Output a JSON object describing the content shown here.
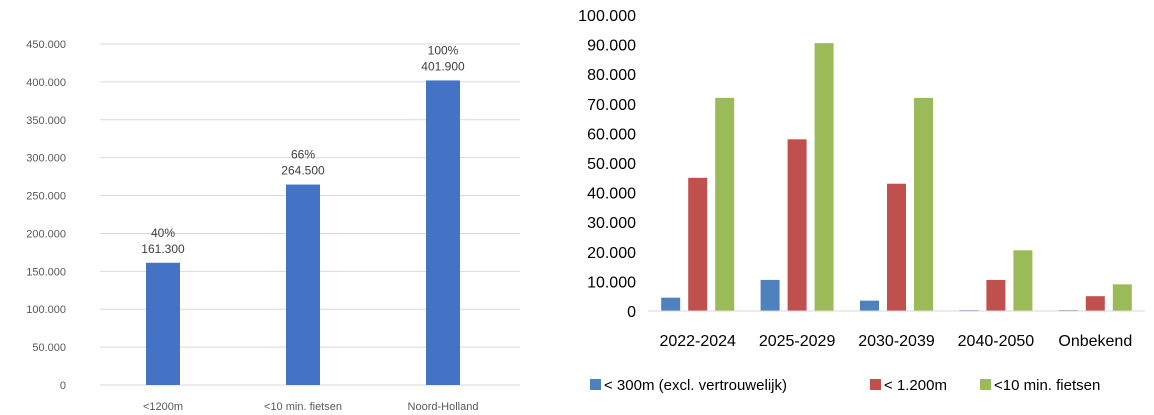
{
  "chart_data": [
    {
      "type": "bar",
      "categories": [
        "<1200m",
        "<10 min. fietsen",
        "Noord-Holland"
      ],
      "values": [
        161300,
        264500,
        401900
      ],
      "data_labels": [
        {
          "pct": "40%",
          "value": "161.300"
        },
        {
          "pct": "66%",
          "value": "264.500"
        },
        {
          "pct": "100%",
          "value": "401.900"
        }
      ],
      "yticks": [
        "0",
        "50.000",
        "100.000",
        "150.000",
        "200.000",
        "250.000",
        "300.000",
        "350.000",
        "400.000",
        "450.000"
      ],
      "ylim": [
        0,
        450000
      ],
      "grid": true,
      "color": "#4472C4"
    },
    {
      "type": "bar",
      "categories": [
        "2022-2024",
        "2025-2029",
        "2030-2039",
        "2040-2050",
        "Onbekend"
      ],
      "series": [
        {
          "name": "< 300m (excl. vertrouwelijk)",
          "values": [
            4500,
            10500,
            3500,
            300,
            300
          ],
          "color": "#4F81BD"
        },
        {
          "name": "< 1.200m",
          "values": [
            45000,
            58000,
            43000,
            10500,
            5000
          ],
          "color": "#C0504D"
        },
        {
          "name": "<10 min. fietsen",
          "values": [
            72000,
            90500,
            72000,
            20500,
            9000
          ],
          "color": "#9BBB59"
        }
      ],
      "yticks": [
        "0",
        "10.000",
        "20.000",
        "30.000",
        "40.000",
        "50.000",
        "60.000",
        "70.000",
        "80.000",
        "90.000",
        "100.000"
      ],
      "ylim": [
        0,
        100000
      ],
      "grid": false,
      "legend": "bottom"
    }
  ]
}
